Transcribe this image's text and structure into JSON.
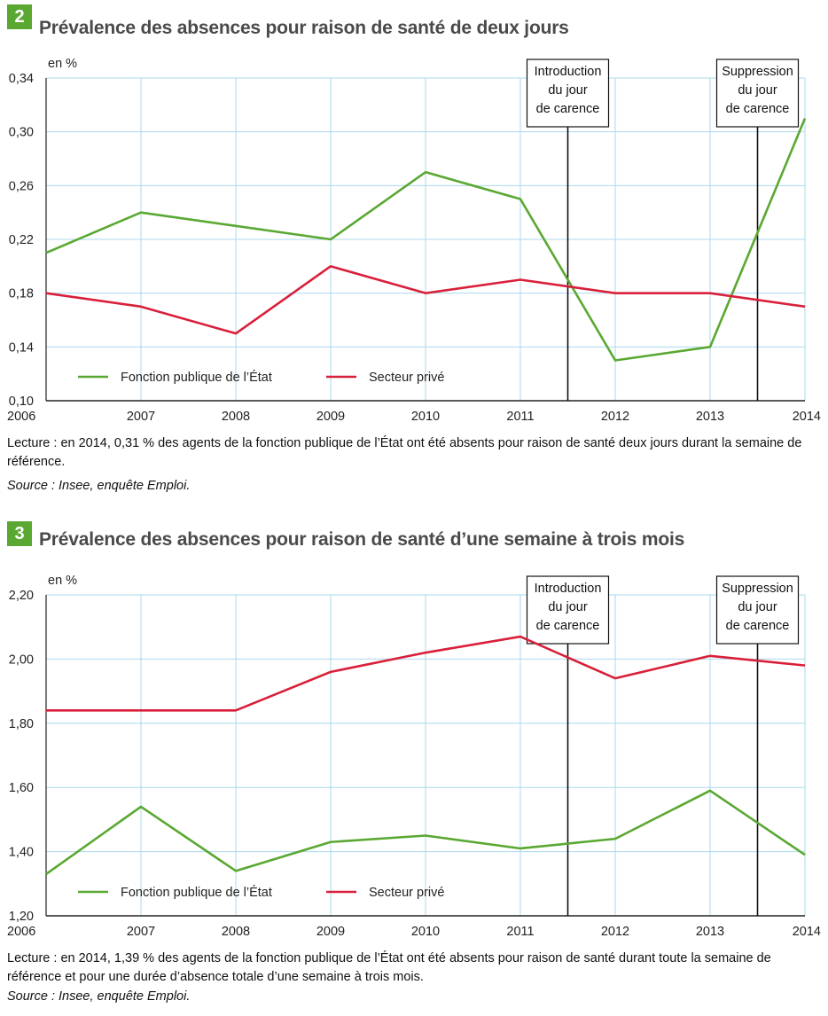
{
  "figures": [
    {
      "number": "2",
      "title": "Prévalence des absences pour raison de santé de deux jours",
      "lecture": "Lecture : en 2014, 0,31 % des agents de la fonction publique de l’État ont été absents pour raison de santé deux jours durant la semaine de référence.",
      "source": "Source : Insee, enquête Emploi."
    },
    {
      "number": "3",
      "title": "Prévalence des absences pour raison de santé d’une semaine à trois mois",
      "lecture": "Lecture : en 2014, 1,39 % des agents de la fonction publique de l’État ont été absents pour raison de santé durant toute la semaine de référence et pour une durée d’absence totale d’une semaine à trois mois.",
      "source": "Source : Insee, enquête Emploi."
    }
  ],
  "colors": {
    "accent": "#5aa832",
    "grid": "#a9d8ee",
    "green": "#5aa832",
    "red": "#d9203a",
    "axis": "#222222"
  },
  "chart_data": [
    {
      "type": "line",
      "unit_label": "en %",
      "x": [
        2006,
        2007,
        2008,
        2009,
        2010,
        2011,
        2012,
        2013,
        2014
      ],
      "x_labels": [
        "2006",
        "2007",
        "2008",
        "2009",
        "2010",
        "2011",
        "2012",
        "2013",
        "2014"
      ],
      "ylim": [
        0.1,
        0.34
      ],
      "y_ticks": [
        0.1,
        0.14,
        0.18,
        0.22,
        0.26,
        0.3,
        0.34
      ],
      "y_tick_labels": [
        "0,10",
        "0,14",
        "0,18",
        "0,22",
        "0,26",
        "0,30",
        "0,34"
      ],
      "grid": true,
      "legend_position": "bottom-left",
      "series": [
        {
          "name": "Fonction publique de l’État",
          "color": "#5aa832",
          "values": [
            0.21,
            0.24,
            0.23,
            0.22,
            0.27,
            0.25,
            0.13,
            0.14,
            0.31
          ]
        },
        {
          "name": "Secteur privé",
          "color": "#d9203a",
          "values": [
            0.18,
            0.17,
            0.15,
            0.2,
            0.18,
            0.19,
            0.18,
            0.18,
            0.17
          ]
        }
      ],
      "annotations": [
        {
          "x": 2011.5,
          "lines": [
            "Introduction",
            "du jour",
            "de carence"
          ]
        },
        {
          "x": 2013.5,
          "lines": [
            "Suppression",
            "du jour",
            "de carence"
          ]
        }
      ]
    },
    {
      "type": "line",
      "unit_label": "en %",
      "x": [
        2006,
        2007,
        2008,
        2009,
        2010,
        2011,
        2012,
        2013,
        2014
      ],
      "x_labels": [
        "2006",
        "2007",
        "2008",
        "2009",
        "2010",
        "2011",
        "2012",
        "2013",
        "2014"
      ],
      "ylim": [
        1.2,
        2.2
      ],
      "y_ticks": [
        1.2,
        1.4,
        1.6,
        1.8,
        2.0,
        2.2
      ],
      "y_tick_labels": [
        "1,20",
        "1,40",
        "1,60",
        "1,80",
        "2,00",
        "2,20"
      ],
      "grid": true,
      "legend_position": "bottom-left",
      "series": [
        {
          "name": "Fonction publique de l’État",
          "color": "#5aa832",
          "values": [
            1.33,
            1.54,
            1.34,
            1.43,
            1.45,
            1.41,
            1.44,
            1.59,
            1.39
          ]
        },
        {
          "name": "Secteur privé",
          "color": "#d9203a",
          "values": [
            1.84,
            1.84,
            1.84,
            1.96,
            2.02,
            2.07,
            1.94,
            2.01,
            1.98
          ]
        }
      ],
      "annotations": [
        {
          "x": 2011.5,
          "lines": [
            "Introduction",
            "du jour",
            "de carence"
          ]
        },
        {
          "x": 2013.5,
          "lines": [
            "Suppression",
            "du jour",
            "de carence"
          ]
        }
      ]
    }
  ]
}
